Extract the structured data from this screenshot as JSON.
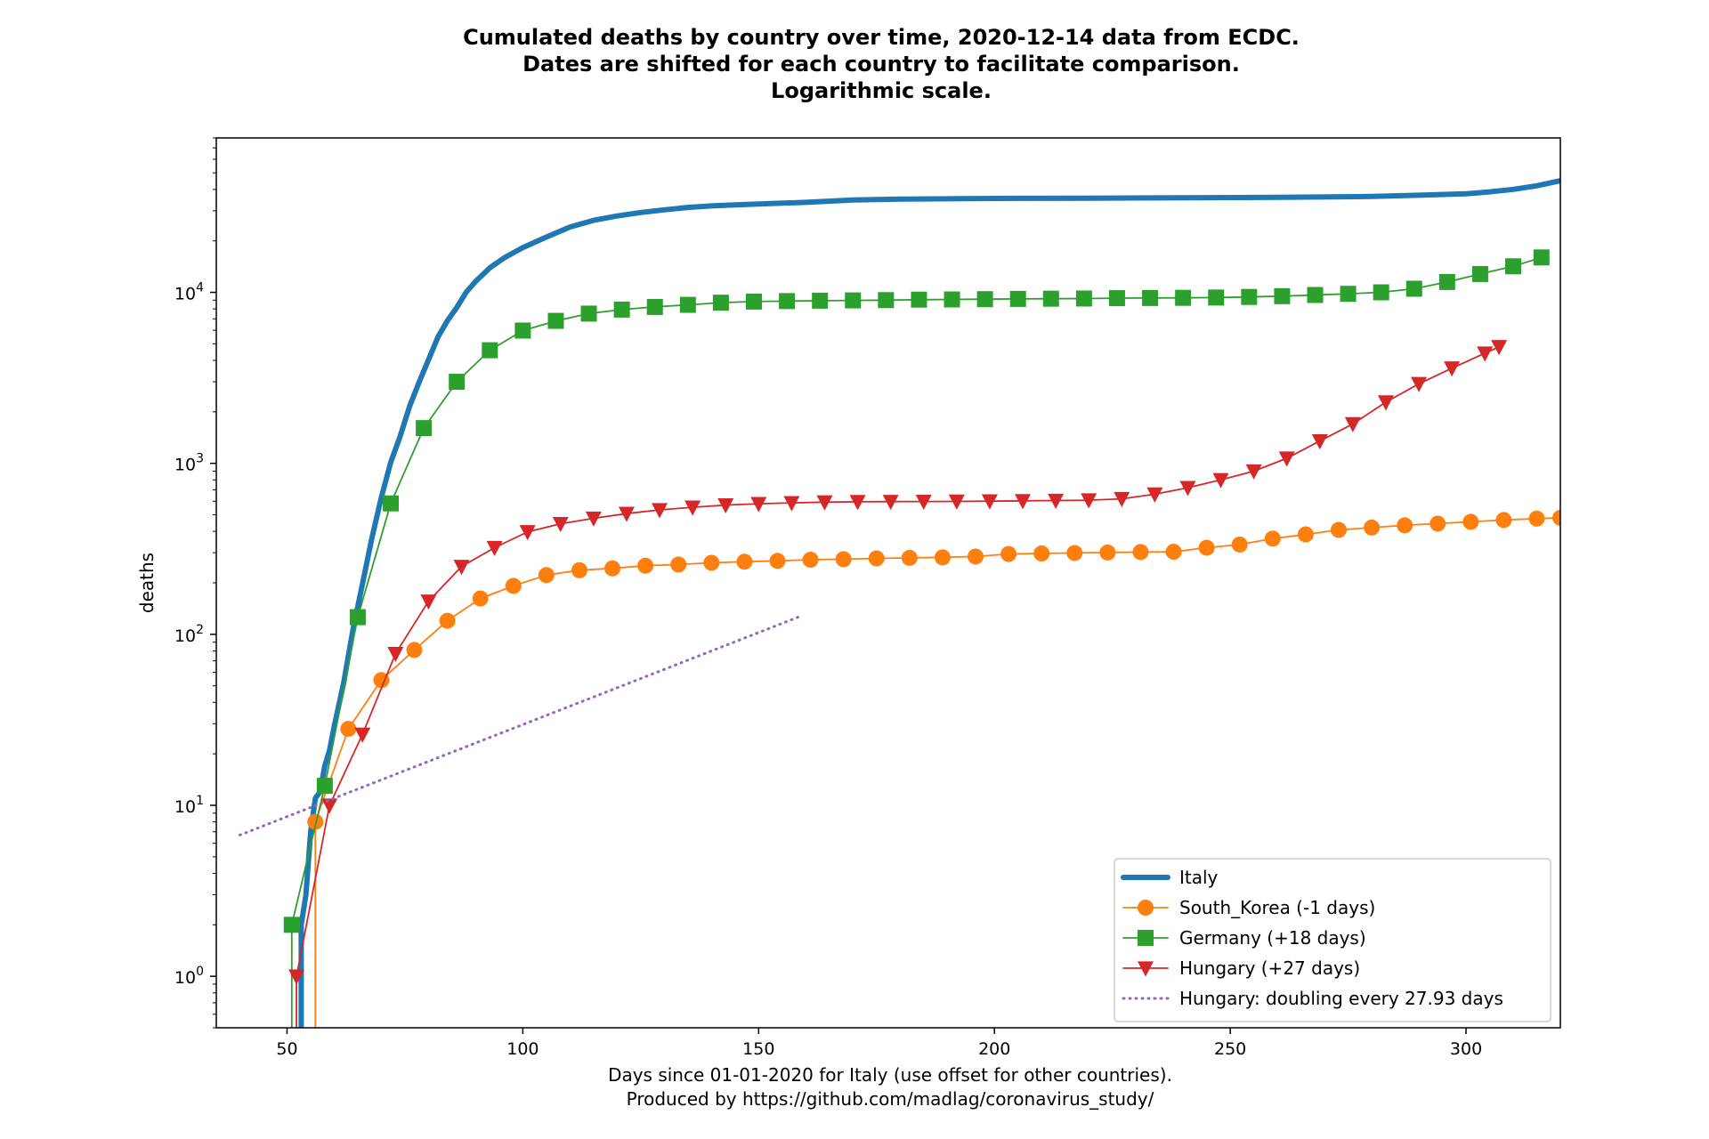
{
  "chart_data": {
    "type": "line",
    "title": [
      "Cumulated deaths by country over time, 2020-12-14 data from ECDC.",
      "Dates are shifted for each country to facilitate comparison.",
      "Logarithmic scale."
    ],
    "xlabel": [
      "Days since 01-01-2020 for Italy (use offset for other countries).",
      "Produced by https://github.com/madlag/coronavirus_study/"
    ],
    "ylabel": "deaths",
    "x_ticks": [
      "50",
      "100",
      "150",
      "200",
      "250",
      "300"
    ],
    "y_ticks": [
      {
        "base": "10",
        "exp": "0",
        "value": 1
      },
      {
        "base": "10",
        "exp": "1",
        "value": 10
      },
      {
        "base": "10",
        "exp": "2",
        "value": 100
      },
      {
        "base": "10",
        "exp": "3",
        "value": 1000
      },
      {
        "base": "10",
        "exp": "4",
        "value": 10000
      }
    ],
    "xlim": [
      35,
      320
    ],
    "ylim": [
      0.5,
      80000
    ],
    "yscale": "log",
    "grid": false,
    "legend_position": "lower-right",
    "series": [
      {
        "name": "Italy",
        "color": "#1f77b4",
        "marker": "none",
        "linewidth": "thick",
        "x": [
          53,
          54,
          55,
          56,
          57,
          58,
          59,
          60,
          62,
          64,
          66,
          68,
          70,
          72,
          74,
          76,
          78,
          80,
          82,
          84,
          86,
          88,
          90,
          93,
          96,
          100,
          105,
          110,
          115,
          120,
          125,
          130,
          135,
          140,
          145,
          150,
          160,
          170,
          180,
          200,
          220,
          240,
          260,
          280,
          290,
          300,
          305,
          310,
          315,
          320
        ],
        "y": [
          2,
          3,
          7,
          11,
          12,
          17,
          21,
          29,
          52,
          107,
          197,
          366,
          631,
          1016,
          1441,
          2158,
          2978,
          4032,
          5476,
          6820,
          8165,
          10023,
          11591,
          13915,
          15887,
          18279,
          21067,
          24114,
          26384,
          27967,
          29315,
          30395,
          31368,
          32007,
          32486,
          32877,
          33601,
          34644,
          35092,
          35427,
          35563,
          35758,
          35941,
          36372,
          36968,
          37700,
          38700,
          40000,
          42000,
          45000
        ]
      },
      {
        "name": "South_Korea (-1 days)",
        "color": "#ff7f0e",
        "marker": "circle",
        "x": [
          56,
          63,
          70,
          77,
          84,
          91,
          98,
          105,
          112,
          119,
          126,
          133,
          140,
          147,
          154,
          161,
          168,
          175,
          182,
          189,
          196,
          203,
          210,
          217,
          224,
          231,
          238,
          245,
          252,
          259,
          266,
          273,
          280,
          287,
          294,
          301,
          308,
          315,
          320
        ],
        "y": [
          8,
          28,
          54,
          81,
          120,
          162,
          192,
          222,
          237,
          243,
          252,
          256,
          262,
          266,
          269,
          273,
          275,
          278,
          280,
          282,
          285,
          295,
          297,
          299,
          301,
          303,
          304,
          321,
          335,
          363,
          384,
          408,
          421,
          434,
          444,
          455,
          466,
          475,
          480
        ]
      },
      {
        "name": "Germany (+18 days)",
        "color": "#2ca02c",
        "marker": "square",
        "x": [
          51,
          58,
          65,
          72,
          79,
          86,
          93,
          100,
          107,
          114,
          121,
          128,
          135,
          142,
          149,
          156,
          163,
          170,
          177,
          184,
          191,
          198,
          205,
          212,
          219,
          226,
          233,
          240,
          247,
          254,
          261,
          268,
          275,
          282,
          289,
          296,
          303,
          310,
          316
        ],
        "y": [
          2,
          13,
          126,
          583,
          1607,
          2999,
          4586,
          5976,
          6812,
          7510,
          7928,
          8216,
          8450,
          8701,
          8831,
          8886,
          8938,
          8972,
          9005,
          9062,
          9087,
          9122,
          9154,
          9181,
          9203,
          9245,
          9269,
          9289,
          9325,
          9400,
          9500,
          9650,
          9800,
          10000,
          10500,
          11500,
          12800,
          14200,
          16000
        ]
      },
      {
        "name": "Hungary (+27 days)",
        "color": "#d62728",
        "marker": "triangle-down",
        "x": [
          52,
          59,
          66,
          73,
          80,
          87,
          94,
          101,
          108,
          115,
          122,
          129,
          136,
          143,
          150,
          157,
          164,
          171,
          178,
          185,
          192,
          199,
          206,
          213,
          220,
          227,
          234,
          241,
          248,
          255,
          262,
          269,
          276,
          283,
          290,
          297,
          304,
          307
        ],
        "y": [
          1,
          10,
          26,
          77,
          156,
          249,
          321,
          397,
          443,
          477,
          508,
          534,
          553,
          570,
          580,
          587,
          593,
          596,
          597,
          598,
          599,
          601,
          603,
          606,
          609,
          620,
          660,
          720,
          800,
          900,
          1070,
          1350,
          1700,
          2280,
          2920,
          3600,
          4400,
          4800
        ]
      },
      {
        "name": "Hungary: doubling every 27.93 days",
        "color": "#9467bd",
        "marker": "none",
        "linestyle": "dotted",
        "x": [
          40,
          159
        ],
        "y": [
          6.7,
          128
        ]
      }
    ]
  }
}
